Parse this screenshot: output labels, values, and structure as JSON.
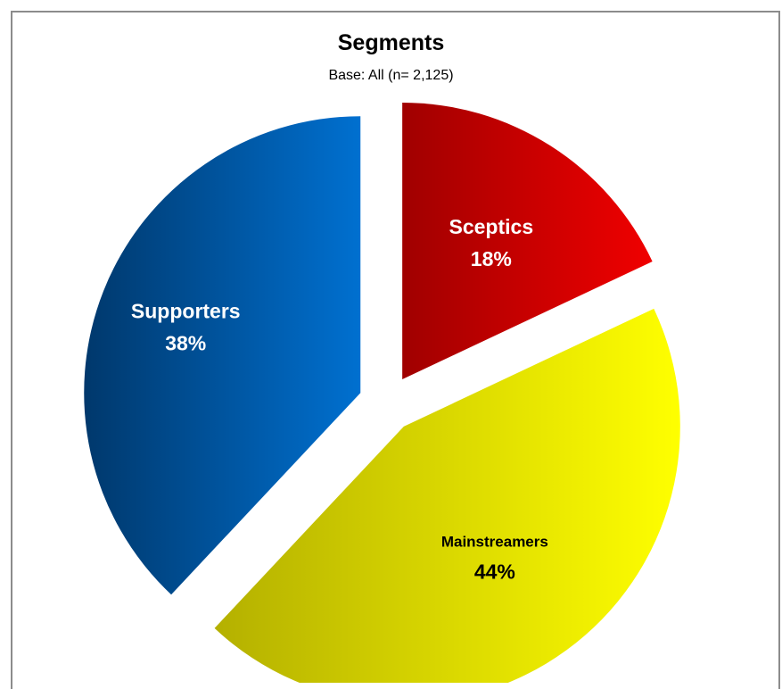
{
  "chart_data": {
    "type": "pie",
    "title": "Segments",
    "subtitle": "Base: All (n= 2,125)",
    "slices": [
      {
        "label": "Sceptics",
        "value": 18,
        "value_label": "18%",
        "color": "#f00000",
        "color_dark": "#a00000",
        "label_color": "#ffffff"
      },
      {
        "label": "Mainstreamers",
        "value": 44,
        "value_label": "44%",
        "color": "#ffff00",
        "color_dark": "#b4b000",
        "label_color": "#000000"
      },
      {
        "label": "Supporters",
        "value": 38,
        "value_label": "38%",
        "color": "#0070d0",
        "color_dark": "#00386c",
        "label_color": "#ffffff"
      }
    ],
    "start_angle_deg": 0,
    "direction": "clockwise",
    "exploded": true,
    "legend": "none"
  }
}
